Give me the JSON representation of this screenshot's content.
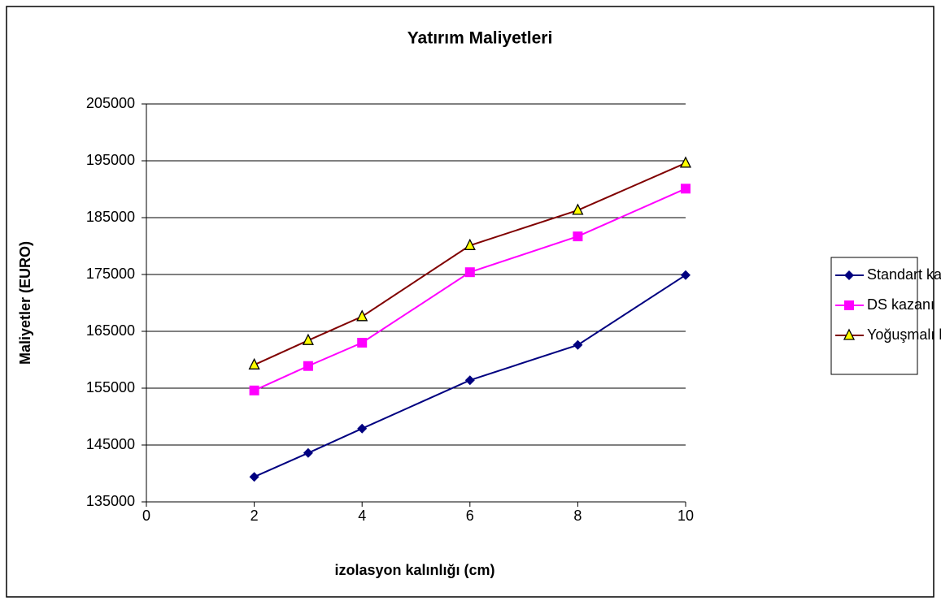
{
  "chart_data": {
    "type": "line",
    "title": "Yatırım Maliyetleri",
    "xlabel": "izolasyon kalınlığı (cm)",
    "ylabel": "Maliyetler (EURO)",
    "x": [
      2,
      3,
      4,
      6,
      8,
      10
    ],
    "series": [
      {
        "name": "Standart kazan",
        "color": "#000080",
        "marker": "diamond",
        "values": [
          139400,
          143600,
          147900,
          156400,
          162600,
          174900
        ]
      },
      {
        "name": "DS kazanı",
        "color": "#ff00ff",
        "marker": "square",
        "values": [
          154600,
          158900,
          163000,
          175400,
          181700,
          190100
        ]
      },
      {
        "name": "Yoğuşmalı kazan",
        "color": "#800000",
        "marker": "triangle",
        "values": [
          159100,
          163400,
          167600,
          180100,
          186300,
          194600
        ]
      }
    ],
    "xlim": [
      0,
      10
    ],
    "xticks": [
      0,
      2,
      4,
      6,
      8,
      10
    ],
    "ylim": [
      135000,
      205000
    ],
    "yticks": [
      135000,
      145000,
      155000,
      165000,
      175000,
      185000,
      195000,
      205000
    ],
    "grid": true,
    "legend": "right"
  }
}
